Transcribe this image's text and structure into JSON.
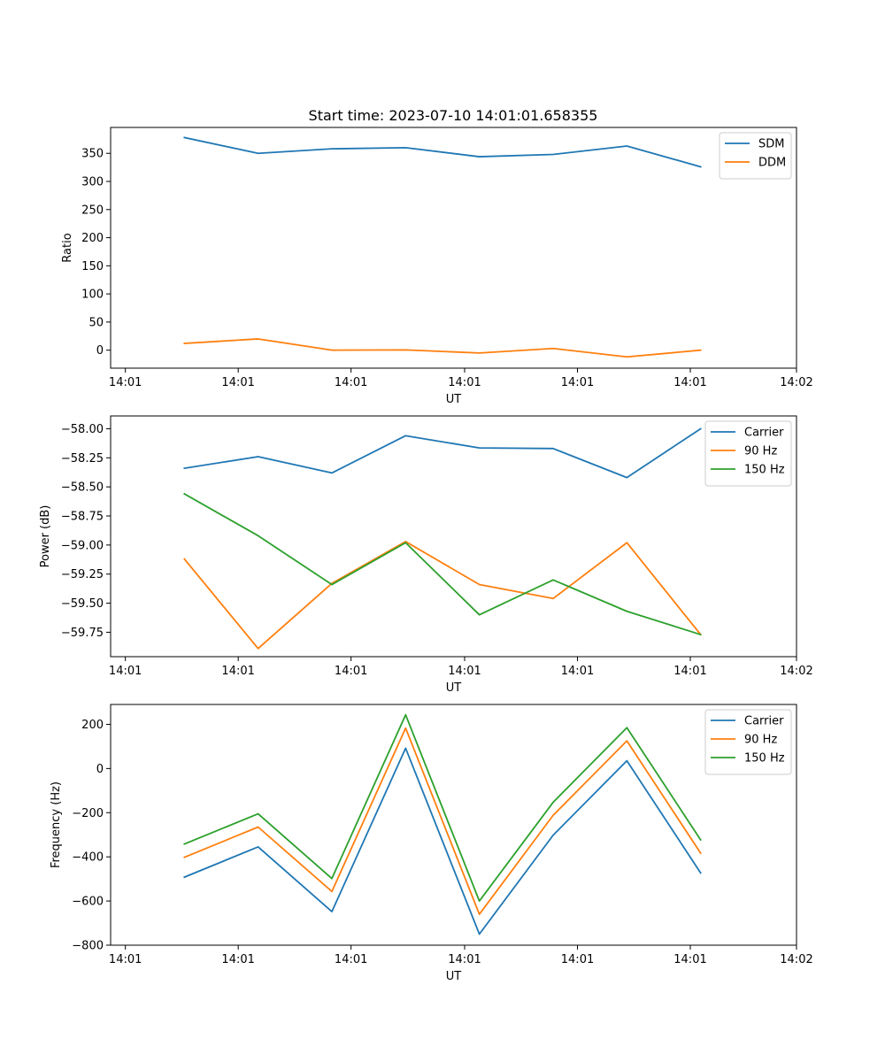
{
  "title": "Start time: 2023-07-10 14:01:01.658355",
  "colors": {
    "blue": "#1f77b4",
    "orange": "#ff7f0e",
    "green": "#2ca02c"
  },
  "chart_data": [
    {
      "type": "line",
      "xlabel": "UT",
      "ylabel": "Ratio",
      "xlim": [
        0,
        9.3
      ],
      "ylim": [
        -32,
        396
      ],
      "x": [
        1,
        2,
        3,
        4,
        5,
        6,
        7,
        8
      ],
      "xticks": [
        {
          "value": 0.2,
          "label": "14:01"
        },
        {
          "value": 1.73,
          "label": "14:01"
        },
        {
          "value": 3.26,
          "label": "14:01"
        },
        {
          "value": 4.8,
          "label": "14:01"
        },
        {
          "value": 6.33,
          "label": "14:01"
        },
        {
          "value": 7.86,
          "label": "14:01"
        },
        {
          "value": 9.3,
          "label": "14:02"
        }
      ],
      "yticks": [
        {
          "value": 350,
          "label": "350"
        },
        {
          "value": 300,
          "label": "300"
        },
        {
          "value": 250,
          "label": "250"
        },
        {
          "value": 200,
          "label": "200"
        },
        {
          "value": 150,
          "label": "150"
        },
        {
          "value": 100,
          "label": "100"
        },
        {
          "value": 50,
          "label": "50"
        },
        {
          "value": 0,
          "label": "0"
        }
      ],
      "legend_position": "top-right",
      "series": [
        {
          "name": "SDM",
          "color": "#1f77b4",
          "values": [
            378,
            350,
            358,
            360,
            344,
            348,
            363,
            326
          ]
        },
        {
          "name": "DDM",
          "color": "#ff7f0e",
          "values": [
            12,
            20,
            0,
            0.5,
            -5,
            3,
            -12,
            0
          ]
        }
      ]
    },
    {
      "type": "line",
      "xlabel": "UT",
      "ylabel": "Power (dB)",
      "xlim": [
        0,
        9.3
      ],
      "ylim": [
        -59.96,
        -57.89
      ],
      "x": [
        1,
        2,
        3,
        4,
        5,
        6,
        7,
        8
      ],
      "xticks": [
        {
          "value": 0.2,
          "label": "14:01"
        },
        {
          "value": 1.73,
          "label": "14:01"
        },
        {
          "value": 3.26,
          "label": "14:01"
        },
        {
          "value": 4.8,
          "label": "14:01"
        },
        {
          "value": 6.33,
          "label": "14:01"
        },
        {
          "value": 7.86,
          "label": "14:01"
        },
        {
          "value": 9.3,
          "label": "14:02"
        }
      ],
      "yticks": [
        {
          "value": -58.0,
          "label": "−58.00"
        },
        {
          "value": -58.25,
          "label": "−58.25"
        },
        {
          "value": -58.5,
          "label": "−58.50"
        },
        {
          "value": -58.75,
          "label": "−58.75"
        },
        {
          "value": -59.0,
          "label": "−59.00"
        },
        {
          "value": -59.25,
          "label": "−59.25"
        },
        {
          "value": -59.5,
          "label": "−59.50"
        },
        {
          "value": -59.75,
          "label": "−59.75"
        }
      ],
      "legend_position": "top-right",
      "series": [
        {
          "name": "Carrier",
          "color": "#1f77b4",
          "values": [
            -58.34,
            -58.24,
            -58.38,
            -58.06,
            -58.165,
            -58.17,
            -58.42,
            -58.0
          ]
        },
        {
          "name": "90 Hz",
          "color": "#ff7f0e",
          "values": [
            -59.12,
            -59.89,
            -59.33,
            -58.97,
            -59.34,
            -59.46,
            -58.98,
            -59.77
          ]
        },
        {
          "name": "150 Hz",
          "color": "#2ca02c",
          "values": [
            -58.56,
            -58.92,
            -59.34,
            -58.98,
            -59.6,
            -59.3,
            -59.57,
            -59.77
          ]
        }
      ]
    },
    {
      "type": "line",
      "xlabel": "UT",
      "ylabel": "Frequency (Hz)",
      "xlim": [
        0,
        9.3
      ],
      "ylim": [
        -800,
        290
      ],
      "x": [
        1,
        2,
        3,
        4,
        5,
        6,
        7,
        8
      ],
      "xticks": [
        {
          "value": 0.2,
          "label": "14:01"
        },
        {
          "value": 1.73,
          "label": "14:01"
        },
        {
          "value": 3.26,
          "label": "14:01"
        },
        {
          "value": 4.8,
          "label": "14:01"
        },
        {
          "value": 6.33,
          "label": "14:01"
        },
        {
          "value": 7.86,
          "label": "14:01"
        },
        {
          "value": 9.3,
          "label": "14:02"
        }
      ],
      "yticks": [
        {
          "value": 200,
          "label": "200"
        },
        {
          "value": 0,
          "label": "0"
        },
        {
          "value": -200,
          "label": "−200"
        },
        {
          "value": -400,
          "label": "−400"
        },
        {
          "value": -600,
          "label": "−600"
        },
        {
          "value": -800,
          "label": "−800"
        }
      ],
      "legend_position": "top-right",
      "series": [
        {
          "name": "Carrier",
          "color": "#1f77b4",
          "values": [
            -492,
            -355,
            -648,
            92,
            -750,
            -302,
            35,
            -473
          ]
        },
        {
          "name": "90 Hz",
          "color": "#ff7f0e",
          "values": [
            -402,
            -265,
            -557,
            183,
            -660,
            -212,
            125,
            -383
          ]
        },
        {
          "name": "150 Hz",
          "color": "#2ca02c",
          "values": [
            -342,
            -205,
            -498,
            243,
            -600,
            -153,
            185,
            -323
          ]
        }
      ]
    }
  ]
}
